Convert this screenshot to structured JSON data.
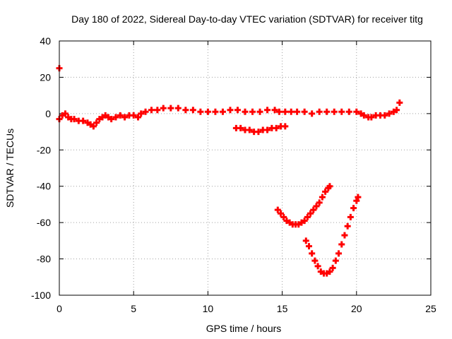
{
  "chart_data": {
    "type": "scatter",
    "title": "Day 180 of 2022, Sidereal Day-to-day VTEC variation (SDTVAR) for receiver titg",
    "xlabel": "GPS time / hours",
    "ylabel": "SDTVAR / TECUs",
    "xlim": [
      0,
      25
    ],
    "ylim": [
      -100,
      40
    ],
    "xticks": [
      0,
      5,
      10,
      15,
      20,
      25
    ],
    "yticks": [
      -100,
      -80,
      -60,
      -40,
      -20,
      0,
      20,
      40
    ],
    "xtick_labels": [
      "0",
      "5",
      "10",
      "15",
      "20",
      "25"
    ],
    "ytick_labels": [
      "-100",
      "-80",
      "-60",
      "-40",
      "-20",
      "0",
      "20",
      "40"
    ],
    "grid": true,
    "marker": "+",
    "color": "#ff0000",
    "series": [
      {
        "points": [
          [
            0.0,
            25
          ],
          [
            0.0,
            -3
          ],
          [
            0.2,
            -1
          ],
          [
            0.4,
            0
          ],
          [
            0.6,
            -2
          ],
          [
            0.8,
            -3
          ],
          [
            1.0,
            -3
          ],
          [
            1.3,
            -4
          ],
          [
            1.6,
            -4
          ],
          [
            1.9,
            -5
          ],
          [
            2.1,
            -6
          ],
          [
            2.3,
            -7
          ],
          [
            2.5,
            -5
          ],
          [
            2.7,
            -3
          ],
          [
            2.9,
            -2
          ],
          [
            3.1,
            -1
          ],
          [
            3.3,
            -2
          ],
          [
            3.5,
            -3
          ],
          [
            3.8,
            -2
          ],
          [
            4.1,
            -1
          ],
          [
            4.4,
            -2
          ],
          [
            4.7,
            -1
          ],
          [
            5.0,
            -1
          ],
          [
            5.3,
            -2
          ],
          [
            5.5,
            0
          ],
          [
            5.8,
            1
          ],
          [
            6.2,
            2
          ],
          [
            6.6,
            2
          ],
          [
            7.0,
            3
          ],
          [
            7.5,
            3
          ],
          [
            8.0,
            3
          ],
          [
            8.5,
            2
          ],
          [
            9.0,
            2
          ],
          [
            9.5,
            1
          ],
          [
            10.0,
            1
          ],
          [
            10.5,
            1
          ],
          [
            11.0,
            1
          ],
          [
            11.5,
            2
          ],
          [
            12.0,
            2
          ],
          [
            12.5,
            1
          ],
          [
            13.0,
            1
          ],
          [
            13.5,
            1
          ],
          [
            14.0,
            2
          ],
          [
            14.5,
            2
          ],
          [
            14.8,
            1
          ],
          [
            15.2,
            1
          ],
          [
            15.6,
            1
          ],
          [
            16.0,
            1
          ],
          [
            16.5,
            1
          ],
          [
            17.0,
            0
          ],
          [
            17.5,
            1
          ],
          [
            18.0,
            1
          ],
          [
            18.5,
            1
          ],
          [
            19.0,
            1
          ],
          [
            19.5,
            1
          ],
          [
            20.0,
            1
          ],
          [
            20.3,
            0
          ],
          [
            20.5,
            -1
          ],
          [
            20.8,
            -2
          ],
          [
            21.0,
            -2
          ],
          [
            21.3,
            -1
          ],
          [
            21.6,
            -1
          ],
          [
            21.9,
            -1
          ],
          [
            22.2,
            0
          ],
          [
            22.5,
            1
          ],
          [
            22.7,
            2
          ],
          [
            22.9,
            6
          ]
        ]
      },
      {
        "points": [
          [
            11.9,
            -8
          ],
          [
            12.2,
            -8
          ],
          [
            12.5,
            -9
          ],
          [
            12.8,
            -9
          ],
          [
            13.1,
            -10
          ],
          [
            13.4,
            -10
          ],
          [
            13.7,
            -9
          ],
          [
            14.0,
            -9
          ],
          [
            14.3,
            -8
          ],
          [
            14.6,
            -8
          ],
          [
            14.9,
            -7
          ],
          [
            15.2,
            -7
          ]
        ]
      },
      {
        "points": [
          [
            14.7,
            -53
          ],
          [
            14.9,
            -55
          ],
          [
            15.1,
            -57
          ],
          [
            15.3,
            -59
          ],
          [
            15.5,
            -60
          ],
          [
            15.7,
            -61
          ],
          [
            15.9,
            -61
          ],
          [
            16.1,
            -61
          ],
          [
            16.3,
            -60
          ],
          [
            16.5,
            -59
          ],
          [
            16.7,
            -57
          ],
          [
            16.9,
            -55
          ],
          [
            17.1,
            -53
          ],
          [
            17.3,
            -51
          ],
          [
            17.5,
            -49
          ],
          [
            17.7,
            -46
          ],
          [
            17.9,
            -43
          ],
          [
            18.1,
            -41
          ],
          [
            18.2,
            -40
          ]
        ]
      },
      {
        "points": [
          [
            16.6,
            -70
          ],
          [
            16.8,
            -73
          ],
          [
            17.0,
            -77
          ],
          [
            17.2,
            -81
          ],
          [
            17.4,
            -84
          ],
          [
            17.6,
            -87
          ],
          [
            17.8,
            -88
          ],
          [
            18.0,
            -88
          ],
          [
            18.2,
            -87
          ],
          [
            18.4,
            -85
          ],
          [
            18.6,
            -81
          ],
          [
            18.8,
            -77
          ],
          [
            19.0,
            -72
          ],
          [
            19.2,
            -67
          ],
          [
            19.4,
            -62
          ],
          [
            19.6,
            -57
          ],
          [
            19.8,
            -52
          ],
          [
            20.0,
            -48
          ],
          [
            20.1,
            -46
          ]
        ]
      }
    ]
  }
}
